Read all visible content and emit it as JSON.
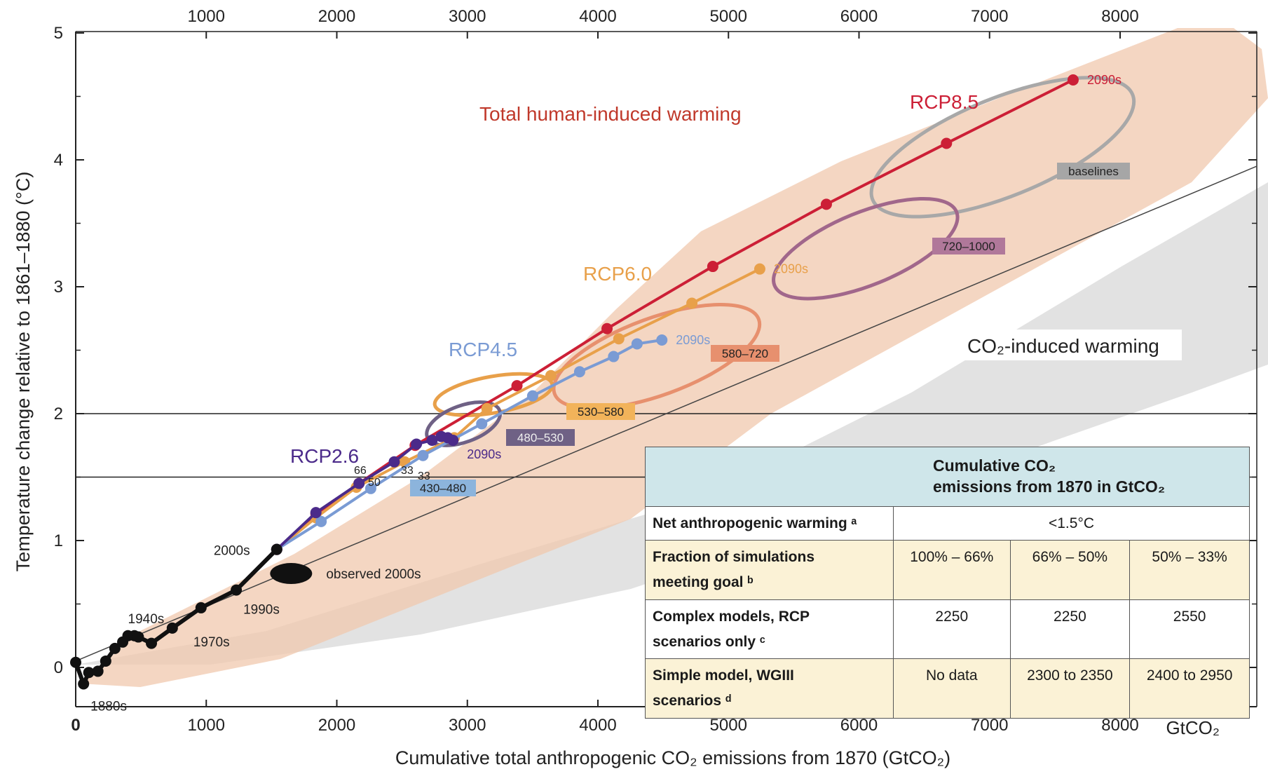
{
  "chart_data": {
    "type": "line",
    "xlabel": "Cumulative total anthropogenic CO₂ emissions from 1870 (GtCO₂)",
    "ylabel": "Temperature change relative to 1861–1880 (°C)",
    "x_unit_label": "GtCO₂",
    "xlim": [
      0,
      8600
    ],
    "ylim": [
      -0.35,
      5
    ],
    "x_ticks": [
      0,
      1000,
      2000,
      3000,
      4000,
      5000,
      6000,
      7000,
      8000
    ],
    "x_tick_labels": [
      "0",
      "1000",
      "2000",
      "3000",
      "4000",
      "5000",
      "6000",
      "7000",
      "8000"
    ],
    "top_x_ticks": [
      1000,
      2000,
      3000,
      4000,
      5000,
      6000,
      7000,
      8000
    ],
    "top_x_tick_labels": [
      "1000",
      "2000",
      "3000",
      "4000",
      "5000",
      "6000",
      "7000",
      "8000"
    ],
    "y_ticks": [
      0,
      1,
      2,
      3,
      4,
      5
    ],
    "y_tick_labels": [
      "0",
      "1",
      "2",
      "3",
      "4",
      "5"
    ],
    "grid": false,
    "reference_lines": [
      {
        "y": 2.0
      },
      {
        "y": 1.5
      }
    ],
    "region_labels": [
      {
        "text": "Total human-induced warming",
        "color": "#c0392b"
      },
      {
        "text": "CO₂-induced warming",
        "color": "#222222"
      }
    ],
    "historical": {
      "color": "#111111",
      "points": [
        [
          0,
          0.04
        ],
        [
          60,
          -0.13
        ],
        [
          100,
          -0.04
        ],
        [
          170,
          -0.03
        ],
        [
          230,
          0.05
        ],
        [
          300,
          0.15
        ],
        [
          360,
          0.2
        ],
        [
          400,
          0.25
        ],
        [
          450,
          0.25
        ],
        [
          480,
          0.24
        ],
        [
          580,
          0.19
        ],
        [
          740,
          0.31
        ],
        [
          960,
          0.47
        ],
        [
          1230,
          0.61
        ],
        [
          1540,
          0.93
        ]
      ],
      "labels": [
        {
          "text": "1880s",
          "x": 60,
          "y": -0.13
        },
        {
          "text": "1940s",
          "x": 400,
          "y": 0.25
        },
        {
          "text": "1970s",
          "x": 740,
          "y": 0.31
        },
        {
          "text": "1990s",
          "x": 1230,
          "y": 0.61
        },
        {
          "text": "2000s",
          "x": 1540,
          "y": 0.93
        }
      ],
      "observed": {
        "label": "observed 2000s",
        "x": 1650,
        "y": 0.74
      }
    },
    "series": [
      {
        "name": "RCP8.5",
        "color": "#cc1f36",
        "x": [
          1540,
          1840,
          2170,
          2600,
          3380,
          4070,
          4880,
          5750,
          6670,
          7640
        ],
        "y": [
          0.93,
          1.21,
          1.45,
          1.75,
          2.22,
          2.67,
          3.16,
          3.65,
          4.13,
          4.63
        ],
        "end_label": "2090s"
      },
      {
        "name": "RCP6.0",
        "color": "#e8a04a",
        "x": [
          1540,
          1840,
          2150,
          2520,
          2900,
          3150,
          3640,
          4160,
          4720,
          5240
        ],
        "y": [
          0.93,
          1.18,
          1.42,
          1.62,
          1.81,
          2.04,
          2.3,
          2.59,
          2.87,
          3.14
        ],
        "end_label": "2090s"
      },
      {
        "name": "RCP4.5",
        "color": "#7a9bd4",
        "x": [
          1540,
          1880,
          2260,
          2660,
          3110,
          3500,
          3860,
          4120,
          4300,
          4490
        ],
        "y": [
          0.93,
          1.15,
          1.41,
          1.67,
          1.92,
          2.14,
          2.33,
          2.45,
          2.55,
          2.58
        ],
        "end_label": "2090s"
      },
      {
        "name": "RCP2.6",
        "color": "#4b2a8a",
        "x": [
          1540,
          1840,
          2170,
          2440,
          2610,
          2730,
          2800,
          2850,
          2890
        ],
        "y": [
          0.93,
          1.22,
          1.45,
          1.62,
          1.76,
          1.79,
          1.82,
          1.81,
          1.79
        ],
        "end_label": "2090s"
      }
    ],
    "bin_labels": [
      {
        "text": "baselines"
      },
      {
        "text": "720–1000"
      },
      {
        "text": "580–720"
      },
      {
        "text": "530–580"
      },
      {
        "text": "480–530"
      },
      {
        "text": "430–480"
      }
    ],
    "small_labels": [
      "66",
      "50",
      "33",
      "33"
    ],
    "table": {
      "header_line1": "Cumulative CO₂",
      "header_line2": "emissions from 1870 in GtCO₂",
      "rows": [
        {
          "label": "Net anthropogenic warming ᵃ",
          "cells": [
            "<1.5°C"
          ]
        },
        {
          "label_line1": "Fraction of simulations",
          "label_line2": "meeting goal ᵇ",
          "cells": [
            "100% – 66%",
            "66% – 50%",
            "50% – 33%"
          ]
        },
        {
          "label_line1": "Complex models, RCP",
          "label_line2": "scenarios only ᶜ",
          "cells": [
            "2250",
            "2250",
            "2550"
          ]
        },
        {
          "label_line1": "Simple model, WGIII",
          "label_line2": "scenarios ᵈ",
          "cells": [
            "No data",
            "2300 to 2350",
            "2400 to 2950"
          ]
        }
      ]
    }
  }
}
